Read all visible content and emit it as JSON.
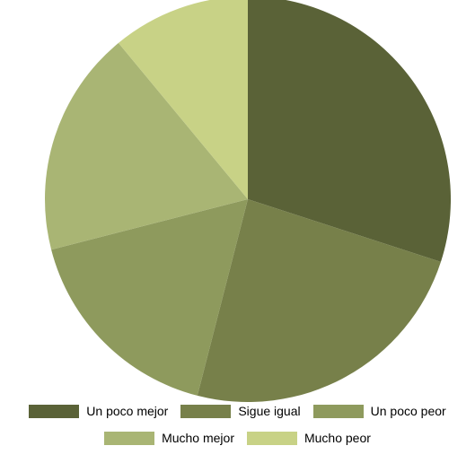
{
  "chart_data": {
    "type": "pie",
    "title": "",
    "categories": [
      "Un poco mejor",
      "Sigue igual",
      "Un poco peor",
      "Mucho mejor",
      "Mucho peor"
    ],
    "values": [
      30,
      24,
      17,
      18,
      11
    ],
    "colors": [
      "#5a6237",
      "#77804a",
      "#8e9a5d",
      "#a9b574",
      "#c8d286"
    ],
    "start_angle": "12 o'clock",
    "direction": "clockwise",
    "legend_position": "bottom"
  }
}
